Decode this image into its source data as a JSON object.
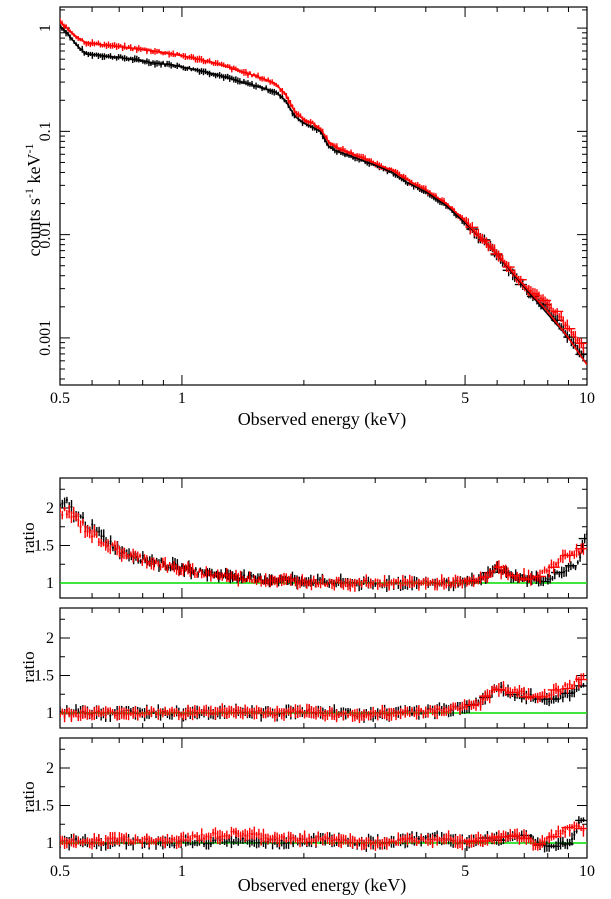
{
  "chart_data": [
    {
      "type": "scatter",
      "panel": "spectrum",
      "x_scale": "log",
      "y_scale": "log",
      "xlim": [
        0.5,
        10
      ],
      "ylim": [
        0.00035,
        1.6
      ],
      "xlabel": "Observed energy (keV)",
      "ylabel": "counts s^-1 keV^-1",
      "x_ticks": [
        "0.5",
        "1",
        "5",
        "10"
      ],
      "y_ticks": [
        "1",
        "0.1",
        "0.01",
        "0.001"
      ],
      "series": [
        {
          "color": "#000000",
          "kind": "data",
          "x": [
            0.5,
            0.52,
            0.55,
            0.58,
            0.62,
            0.66,
            0.7,
            0.75,
            0.8,
            0.85,
            0.9,
            0.95,
            1.0,
            1.1,
            1.2,
            1.3,
            1.4,
            1.5,
            1.6,
            1.7,
            1.8,
            1.9,
            2.0,
            2.1,
            2.2,
            2.3,
            2.4,
            2.6,
            2.8,
            3.0,
            3.3,
            3.6,
            4.0,
            4.5,
            5.0,
            5.5,
            6.0,
            6.5,
            7.0,
            8.0,
            9.0,
            9.8
          ],
          "y": [
            1.05,
            0.9,
            0.68,
            0.56,
            0.55,
            0.53,
            0.52,
            0.5,
            0.48,
            0.46,
            0.45,
            0.44,
            0.42,
            0.39,
            0.36,
            0.33,
            0.3,
            0.28,
            0.26,
            0.24,
            0.2,
            0.14,
            0.12,
            0.11,
            0.1,
            0.072,
            0.065,
            0.058,
            0.052,
            0.047,
            0.04,
            0.032,
            0.026,
            0.019,
            0.013,
            0.009,
            0.0065,
            0.0044,
            0.0031,
            0.0019,
            0.001,
            0.00065
          ]
        },
        {
          "color": "#ff0000",
          "kind": "data",
          "x": [
            0.5,
            0.52,
            0.55,
            0.58,
            0.62,
            0.66,
            0.7,
            0.75,
            0.8,
            0.85,
            0.9,
            0.95,
            1.0,
            1.1,
            1.2,
            1.3,
            1.4,
            1.5,
            1.6,
            1.7,
            1.8,
            1.9,
            2.0,
            2.1,
            2.2,
            2.3,
            2.4,
            2.6,
            2.8,
            3.0,
            3.3,
            3.6,
            4.0,
            4.5,
            5.0,
            5.5,
            6.0,
            6.5,
            7.0,
            7.5,
            8.0,
            8.5,
            9.2,
            9.8
          ],
          "y": [
            1.15,
            1.0,
            0.82,
            0.72,
            0.7,
            0.68,
            0.66,
            0.64,
            0.62,
            0.6,
            0.58,
            0.56,
            0.54,
            0.5,
            0.46,
            0.42,
            0.38,
            0.35,
            0.32,
            0.29,
            0.23,
            0.155,
            0.13,
            0.12,
            0.105,
            0.08,
            0.07,
            0.062,
            0.055,
            0.049,
            0.042,
            0.034,
            0.027,
            0.02,
            0.0135,
            0.009,
            0.0065,
            0.0045,
            0.0032,
            0.0026,
            0.0021,
            0.0017,
            0.0011,
            0.0008
          ]
        },
        {
          "color": "#000000",
          "kind": "model",
          "x": [
            0.5,
            0.52,
            0.55,
            0.58,
            0.62,
            0.66,
            0.7,
            0.75,
            0.8,
            0.85,
            0.9,
            0.95,
            1.0,
            1.1,
            1.2,
            1.3,
            1.4,
            1.5,
            1.6,
            1.7,
            1.8,
            1.9,
            2.0,
            2.1,
            2.2,
            2.3,
            2.4,
            2.6,
            2.8,
            3.0,
            3.3,
            3.6,
            4.0,
            4.5,
            5.0,
            5.5,
            6.0,
            6.5,
            7.0,
            8.0,
            9.0,
            10.0
          ],
          "y": [
            1.05,
            0.9,
            0.68,
            0.56,
            0.55,
            0.53,
            0.52,
            0.5,
            0.48,
            0.46,
            0.45,
            0.44,
            0.42,
            0.39,
            0.36,
            0.33,
            0.3,
            0.28,
            0.26,
            0.24,
            0.2,
            0.14,
            0.12,
            0.11,
            0.1,
            0.072,
            0.065,
            0.058,
            0.052,
            0.047,
            0.04,
            0.032,
            0.026,
            0.019,
            0.013,
            0.009,
            0.0065,
            0.0044,
            0.0031,
            0.0017,
            0.001,
            0.00055
          ]
        },
        {
          "color": "#ff0000",
          "kind": "model",
          "x": [
            0.5,
            0.52,
            0.55,
            0.58,
            0.62,
            0.66,
            0.7,
            0.75,
            0.8,
            0.85,
            0.9,
            0.95,
            1.0,
            1.1,
            1.2,
            1.3,
            1.4,
            1.5,
            1.6,
            1.7,
            1.8,
            1.9,
            2.0,
            2.1,
            2.2,
            2.3,
            2.4,
            2.6,
            2.8,
            3.0,
            3.3,
            3.6,
            4.0,
            4.5,
            5.0,
            5.5,
            6.0,
            6.5,
            7.0,
            8.0,
            9.0,
            10.0
          ],
          "y": [
            1.15,
            1.0,
            0.82,
            0.72,
            0.7,
            0.68,
            0.66,
            0.64,
            0.62,
            0.6,
            0.58,
            0.56,
            0.54,
            0.5,
            0.46,
            0.42,
            0.38,
            0.35,
            0.32,
            0.29,
            0.23,
            0.155,
            0.13,
            0.12,
            0.105,
            0.08,
            0.07,
            0.062,
            0.055,
            0.049,
            0.042,
            0.034,
            0.027,
            0.02,
            0.0135,
            0.009,
            0.0065,
            0.0045,
            0.0032,
            0.0018,
            0.001,
            0.00055
          ]
        }
      ]
    },
    {
      "type": "scatter",
      "panel": "ratio-1",
      "x_scale": "log",
      "xlim": [
        0.5,
        10
      ],
      "ylim": [
        0.8,
        2.4
      ],
      "ylabel": "ratio",
      "y_ticks": [
        "1",
        "1.5",
        "2"
      ],
      "reference_line": {
        "y": 1,
        "color": "#00dd00"
      },
      "series": [
        {
          "color": "#000000",
          "x": [
            0.5,
            0.52,
            0.55,
            0.58,
            0.62,
            0.66,
            0.7,
            0.75,
            0.8,
            0.85,
            0.9,
            0.95,
            1.0,
            1.1,
            1.2,
            1.3,
            1.4,
            1.5,
            1.6,
            1.8,
            2.0,
            2.2,
            2.5,
            2.8,
            3.0,
            3.3,
            3.6,
            4.0,
            4.5,
            5.0,
            5.5,
            6.0,
            6.5,
            7.0,
            8.0,
            9.5,
            10.0
          ],
          "y": [
            2.0,
            2.05,
            1.9,
            1.8,
            1.65,
            1.55,
            1.45,
            1.38,
            1.32,
            1.3,
            1.25,
            1.22,
            1.2,
            1.15,
            1.12,
            1.1,
            1.08,
            1.06,
            1.05,
            1.04,
            1.03,
            1.02,
            1.0,
            1.0,
            0.98,
            1.0,
            1.0,
            1.0,
            1.0,
            1.0,
            1.05,
            1.2,
            1.1,
            1.05,
            1.05,
            1.25,
            1.7
          ]
        },
        {
          "color": "#ff0000",
          "x": [
            0.5,
            0.52,
            0.55,
            0.58,
            0.62,
            0.66,
            0.7,
            0.75,
            0.8,
            0.85,
            0.9,
            0.95,
            1.0,
            1.1,
            1.2,
            1.3,
            1.4,
            1.5,
            1.6,
            1.8,
            2.0,
            2.2,
            2.5,
            2.8,
            3.0,
            3.3,
            3.6,
            4.0,
            4.5,
            5.0,
            5.5,
            6.0,
            6.5,
            7.0,
            7.5,
            8.5,
            9.2,
            9.8
          ],
          "y": [
            1.9,
            1.95,
            1.85,
            1.72,
            1.6,
            1.5,
            1.42,
            1.36,
            1.32,
            1.28,
            1.24,
            1.2,
            1.18,
            1.14,
            1.11,
            1.09,
            1.07,
            1.05,
            1.04,
            1.03,
            1.02,
            1.01,
            1.0,
            1.0,
            1.0,
            1.0,
            1.0,
            1.0,
            1.0,
            1.0,
            1.05,
            1.2,
            1.1,
            1.08,
            1.05,
            1.3,
            1.4,
            1.45
          ]
        }
      ]
    },
    {
      "type": "scatter",
      "panel": "ratio-2",
      "x_scale": "log",
      "xlim": [
        0.5,
        10
      ],
      "ylim": [
        0.8,
        2.4
      ],
      "ylabel": "ratio",
      "y_ticks": [
        "1",
        "1.5",
        "2"
      ],
      "reference_line": {
        "y": 1,
        "color": "#00dd00"
      },
      "series": [
        {
          "color": "#000000",
          "x": [
            0.5,
            0.55,
            0.6,
            0.7,
            0.8,
            0.9,
            1.0,
            1.2,
            1.4,
            1.6,
            1.8,
            2.0,
            2.2,
            2.5,
            2.8,
            3.0,
            3.3,
            3.6,
            4.0,
            4.5,
            5.0,
            5.5,
            6.0,
            6.5,
            7.0,
            8.0,
            9.0,
            9.8
          ],
          "y": [
            1.0,
            1.02,
            1.0,
            1.0,
            1.01,
            1.0,
            1.0,
            1.01,
            1.0,
            1.0,
            1.01,
            1.02,
            1.0,
            1.0,
            0.98,
            0.98,
            1.0,
            1.02,
            1.02,
            1.05,
            1.1,
            1.15,
            1.35,
            1.25,
            1.22,
            1.18,
            1.25,
            1.4
          ]
        },
        {
          "color": "#ff0000",
          "x": [
            0.5,
            0.55,
            0.6,
            0.7,
            0.8,
            0.9,
            1.0,
            1.2,
            1.4,
            1.6,
            1.8,
            2.0,
            2.2,
            2.5,
            2.8,
            3.0,
            3.3,
            3.6,
            4.0,
            4.5,
            5.0,
            5.5,
            6.0,
            6.5,
            7.0,
            7.5,
            8.5,
            9.2,
            9.8
          ],
          "y": [
            1.0,
            0.98,
            1.0,
            1.0,
            1.0,
            1.01,
            1.0,
            1.02,
            1.02,
            1.0,
            1.0,
            1.0,
            1.0,
            0.98,
            0.97,
            0.98,
            1.0,
            1.01,
            1.02,
            1.03,
            1.1,
            1.15,
            1.35,
            1.3,
            1.25,
            1.2,
            1.3,
            1.4,
            1.45
          ]
        }
      ]
    },
    {
      "type": "scatter",
      "panel": "ratio-3",
      "x_scale": "log",
      "xlim": [
        0.5,
        10
      ],
      "ylim": [
        0.8,
        2.4
      ],
      "xlabel": "Observed energy (keV)",
      "ylabel": "ratio",
      "y_ticks": [
        "1",
        "1.5",
        "2"
      ],
      "x_ticks": [
        "0.5",
        "1",
        "5",
        "10"
      ],
      "reference_line": {
        "y": 1,
        "color": "#00dd00"
      },
      "series": [
        {
          "color": "#000000",
          "x": [
            0.5,
            0.55,
            0.6,
            0.7,
            0.8,
            0.9,
            1.0,
            1.2,
            1.4,
            1.6,
            1.8,
            2.0,
            2.2,
            2.5,
            2.8,
            3.0,
            3.3,
            3.6,
            4.0,
            4.5,
            5.0,
            5.5,
            6.0,
            6.5,
            7.0,
            8.0,
            9.0,
            9.8
          ],
          "y": [
            1.0,
            1.02,
            1.0,
            1.03,
            1.02,
            1.0,
            1.0,
            1.02,
            1.05,
            1.03,
            1.02,
            1.03,
            1.05,
            1.02,
            1.0,
            1.0,
            1.02,
            1.03,
            1.08,
            1.05,
            1.0,
            1.05,
            1.05,
            1.08,
            1.1,
            0.95,
            1.0,
            1.35
          ]
        },
        {
          "color": "#ff0000",
          "x": [
            0.5,
            0.55,
            0.6,
            0.7,
            0.8,
            0.9,
            1.0,
            1.2,
            1.4,
            1.6,
            1.8,
            2.0,
            2.2,
            2.5,
            2.8,
            3.0,
            3.3,
            3.6,
            4.0,
            4.5,
            5.0,
            5.5,
            6.0,
            6.5,
            7.0,
            7.5,
            8.5,
            9.2,
            9.8
          ],
          "y": [
            1.0,
            1.0,
            1.01,
            1.05,
            1.03,
            1.02,
            1.05,
            1.1,
            1.12,
            1.08,
            1.05,
            1.05,
            1.06,
            1.03,
            1.0,
            1.0,
            1.02,
            1.03,
            1.05,
            1.08,
            1.02,
            1.05,
            1.08,
            1.1,
            1.08,
            0.95,
            1.15,
            1.2,
            1.2
          ]
        }
      ]
    }
  ]
}
